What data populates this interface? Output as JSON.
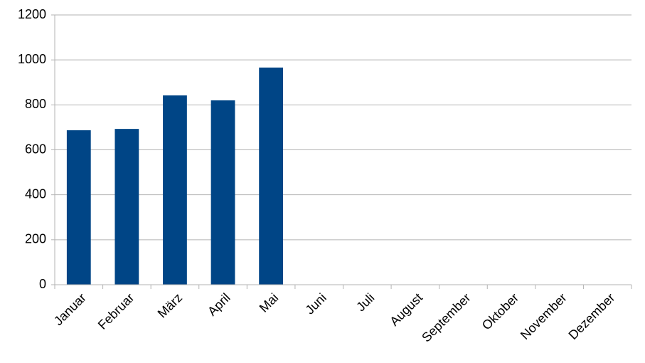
{
  "chart_data": {
    "type": "bar",
    "categories": [
      "Januar",
      "Februar",
      "März",
      "April",
      "Mai",
      "Juni",
      "Juli",
      "August",
      "September",
      "Oktober",
      "November",
      "Dezember"
    ],
    "values": [
      687,
      693,
      842,
      820,
      966,
      null,
      null,
      null,
      null,
      null,
      null,
      null
    ],
    "color": "#004586",
    "ylim": [
      0,
      1200
    ],
    "yticks": [
      0,
      200,
      400,
      600,
      800,
      1000,
      1200
    ],
    "grid": true
  }
}
